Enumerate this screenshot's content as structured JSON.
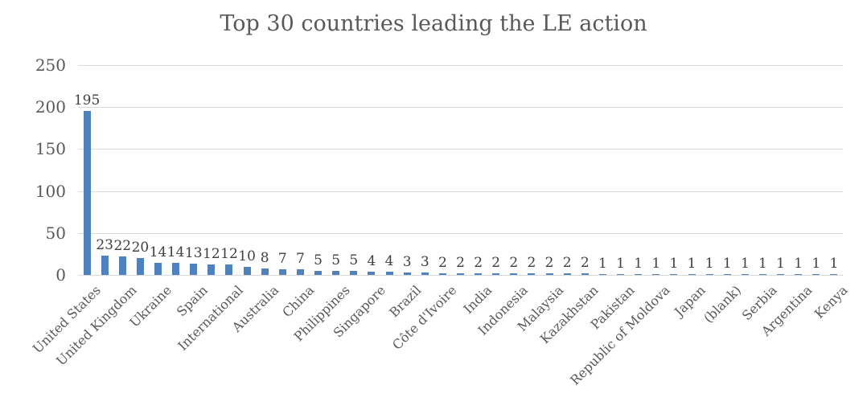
{
  "chart_data": {
    "type": "bar",
    "title": "Top 30 countries leading the LE action",
    "xlabel": "",
    "ylabel": "",
    "ylim": [
      0,
      250
    ],
    "yticks": [
      0,
      50,
      100,
      150,
      200,
      250
    ],
    "grid": "horizontal",
    "legend": "none",
    "data_labels": true,
    "categories": [
      "United States",
      "",
      "United Kingdom",
      "",
      "Ukraine",
      "",
      "Spain",
      "",
      "International",
      "",
      "Australia",
      "",
      "China",
      "",
      "Philippines",
      "",
      "Singapore",
      "",
      "Brazil",
      "",
      "Côte d'Ivoire",
      "",
      "India",
      "",
      "Indonesia",
      "",
      "Malaysia",
      "",
      "Kazakhstan",
      "",
      "Pakistan",
      "",
      "Republic of Moldova",
      "",
      "Japan",
      "",
      "(blank)",
      "",
      "Serbia",
      "",
      "Argentina",
      "",
      "Kenya"
    ],
    "values": [
      195,
      23,
      22,
      20,
      14,
      14,
      13,
      12,
      12,
      10,
      8,
      7,
      7,
      5,
      5,
      5,
      4,
      4,
      3,
      3,
      2,
      2,
      2,
      2,
      2,
      2,
      2,
      2,
      2,
      1,
      1,
      1,
      1,
      1,
      1,
      1,
      1,
      1,
      1,
      1,
      1,
      1,
      1
    ],
    "colors": {
      "bar": "#4F81BD",
      "gridline": "#d9d9d9",
      "axis_text": "#595959",
      "value_label": "#404040",
      "background": "#ffffff"
    }
  }
}
